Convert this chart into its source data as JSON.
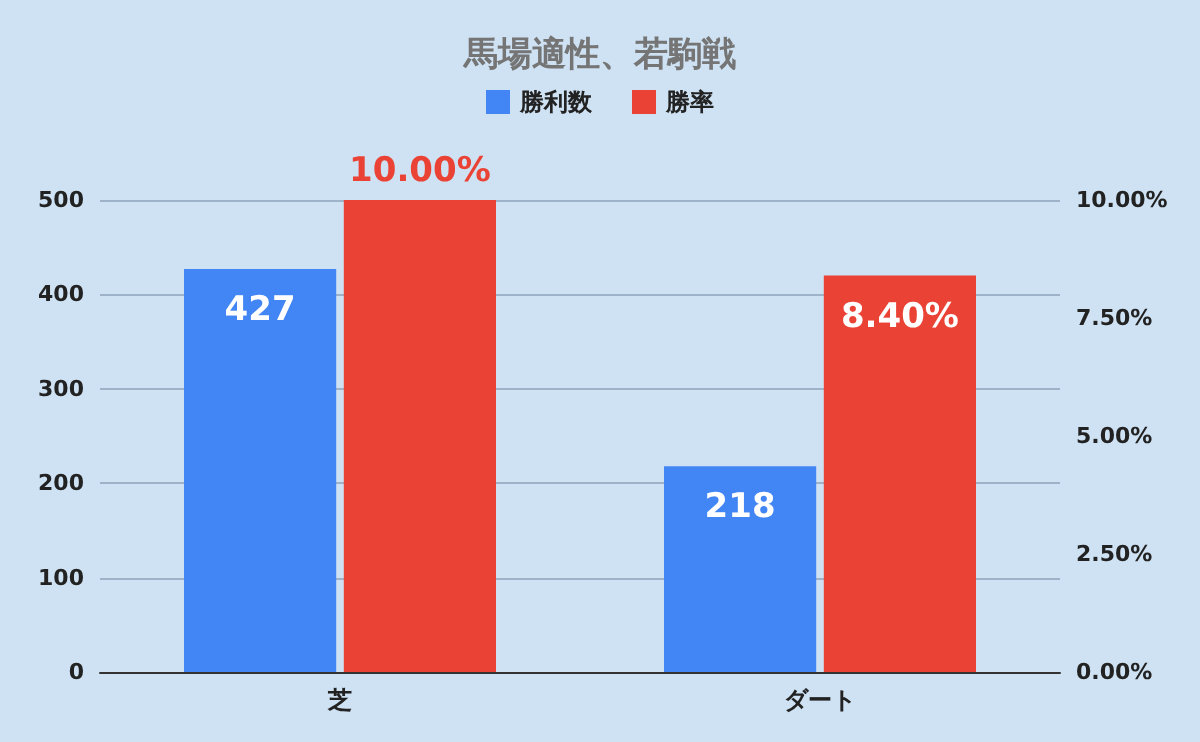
{
  "chart_data": {
    "type": "bar",
    "title": "馬場適性、若駒戦",
    "categories": [
      "芝",
      "ダート"
    ],
    "series": [
      {
        "name": "勝利数",
        "color": "#4285f4",
        "values": [
          427,
          218
        ],
        "value_labels": [
          "427",
          "218"
        ]
      },
      {
        "name": "勝率",
        "color": "#ea4335",
        "values": [
          10.0,
          8.4
        ],
        "axis": "y2",
        "value_labels": [
          "10.00%",
          "8.40%"
        ]
      }
    ],
    "ylim": [
      0,
      500
    ],
    "yticks": [
      0,
      100,
      200,
      300,
      400,
      500
    ],
    "y2lim": [
      0,
      10
    ],
    "y2ticks": [
      {
        "value": 0,
        "label": "0.00%"
      },
      {
        "value": 2.5,
        "label": "2.50%"
      },
      {
        "value": 5,
        "label": "5.00%"
      },
      {
        "value": 7.5,
        "label": "7.50%"
      },
      {
        "value": 10,
        "label": "10.00%"
      }
    ],
    "grid": "y",
    "legend": "top"
  }
}
